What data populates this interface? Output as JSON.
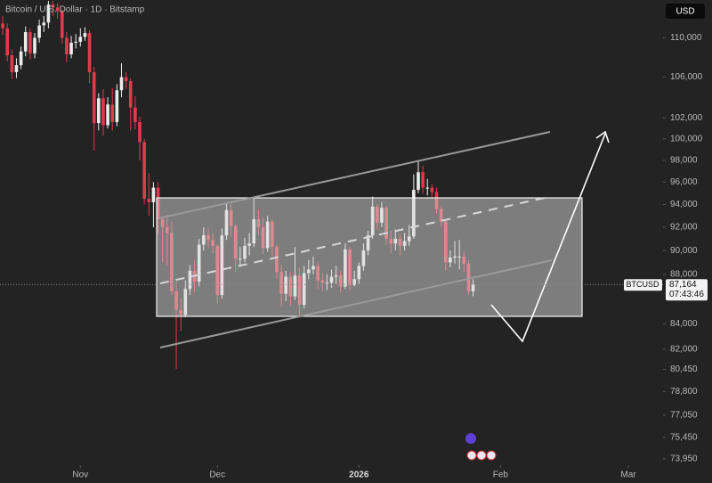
{
  "chart_data": {
    "type": "candlestick",
    "title": "Bitcoin / U.S. Dollar · 1D · Bitstamp",
    "currency": "USD",
    "log_scale": true,
    "up_color": "#ececec",
    "down_color": "#e03a4c",
    "open": [
      111500,
      111000,
      108200,
      106500,
      107200,
      108600,
      110600,
      108400,
      110000,
      111300,
      111600,
      113500,
      113200,
      112800,
      110000,
      108300,
      109500,
      109600,
      110100,
      110500,
      106500,
      101500,
      103900,
      101300,
      103300,
      101600,
      104700,
      106000,
      105600,
      103000,
      101600,
      99700,
      94500,
      94200,
      95500,
      92700,
      92000,
      91500,
      86600,
      85100,
      84700,
      86800,
      88300,
      87400,
      90500,
      91300,
      90900,
      90400,
      86300,
      91300,
      93500,
      92100,
      89300,
      89300,
      90400,
      90600,
      92700,
      92000,
      90200,
      92500,
      90300,
      88200,
      86400,
      87800,
      86200,
      87900,
      85500,
      88100,
      88400,
      88700,
      87500,
      87300,
      87300,
      87800,
      87900,
      87000,
      90100,
      87100,
      87600,
      88700,
      90000,
      91300,
      93800,
      92400,
      93700,
      91000,
      90600,
      91000,
      90400,
      90800,
      91200,
      95300,
      96900,
      95500,
      95500,
      95100,
      93600,
      92500,
      89000,
      89400,
      89500,
      89500,
      88900,
      86600
    ],
    "high": [
      112300,
      111500,
      108800,
      107900,
      109100,
      111200,
      111000,
      110500,
      111900,
      112300,
      113900,
      113900,
      113700,
      113000,
      110600,
      110200,
      110400,
      111000,
      111100,
      110800,
      107000,
      104400,
      104800,
      104000,
      104900,
      105300,
      107400,
      106500,
      105900,
      104100,
      102100,
      100000,
      96800,
      96000,
      96000,
      93000,
      93100,
      92500,
      87400,
      86000,
      87500,
      88800,
      89200,
      91000,
      92000,
      91900,
      91500,
      90500,
      91900,
      94100,
      94000,
      92300,
      90300,
      91100,
      91500,
      94600,
      93500,
      92800,
      93000,
      92700,
      90500,
      88800,
      88300,
      88200,
      90300,
      88500,
      88700,
      89200,
      89500,
      89000,
      88100,
      88000,
      88400,
      88700,
      88300,
      90600,
      90300,
      88300,
      89000,
      90600,
      91700,
      94700,
      94000,
      94200,
      93900,
      91700,
      91800,
      91400,
      91500,
      92200,
      96700,
      97900,
      97500,
      96300,
      95800,
      95500,
      93900,
      92700,
      90000,
      90800,
      90900,
      89900,
      89200,
      87600
    ],
    "low": [
      110300,
      107600,
      105800,
      105900,
      106800,
      108100,
      107800,
      107900,
      109500,
      110600,
      111000,
      112300,
      112000,
      109400,
      107500,
      107900,
      108900,
      109100,
      109700,
      105400,
      98900,
      100800,
      100300,
      101000,
      100800,
      101200,
      104000,
      104800,
      100800,
      100900,
      98000,
      94000,
      93000,
      92000,
      91300,
      89000,
      88700,
      86300,
      80500,
      83400,
      84500,
      86300,
      86500,
      87000,
      90000,
      90200,
      89800,
      85600,
      86000,
      90900,
      91200,
      88200,
      88600,
      89000,
      89600,
      90300,
      91300,
      89700,
      89900,
      89500,
      87600,
      85300,
      85800,
      85400,
      85900,
      84500,
      85200,
      87600,
      88000,
      86800,
      86600,
      86700,
      86900,
      87200,
      86500,
      86800,
      86600,
      87000,
      87200,
      88300,
      89600,
      91000,
      91800,
      92000,
      90500,
      89800,
      90000,
      89600,
      90000,
      90400,
      91000,
      95000,
      95000,
      94800,
      94500,
      93200,
      92000,
      88300,
      88600,
      88900,
      88400,
      88200,
      86300,
      86200
    ],
    "close": [
      111000,
      108200,
      106500,
      107200,
      108600,
      110600,
      108400,
      110000,
      111300,
      111600,
      113500,
      113200,
      112800,
      110000,
      108300,
      109500,
      109600,
      110100,
      110500,
      106500,
      101500,
      103900,
      101300,
      103300,
      101600,
      104700,
      106000,
      105600,
      103000,
      101600,
      99700,
      94500,
      94200,
      95500,
      92700,
      92000,
      91500,
      86600,
      85100,
      84700,
      86800,
      88300,
      87400,
      90500,
      91300,
      90900,
      90400,
      86300,
      91300,
      93500,
      92100,
      89300,
      89300,
      90400,
      90600,
      92700,
      92000,
      90200,
      92500,
      90300,
      88200,
      86400,
      87800,
      86200,
      87900,
      85500,
      88100,
      88400,
      88700,
      87500,
      87300,
      87300,
      87800,
      87900,
      87000,
      90100,
      87100,
      87600,
      88700,
      90000,
      91300,
      93800,
      92400,
      93700,
      91000,
      90600,
      91000,
      90400,
      90800,
      91200,
      95300,
      96900,
      95500,
      95500,
      95100,
      93600,
      92500,
      89000,
      89400,
      89500,
      89500,
      88900,
      86600,
      87200
    ],
    "xlim": [
      -0.6,
      144.6
    ],
    "xticks": [
      {
        "value": 17,
        "label": "Nov"
      },
      {
        "value": 47,
        "label": "Dec"
      },
      {
        "value": 78,
        "label": "2026"
      },
      {
        "value": 109,
        "label": "Feb"
      },
      {
        "value": 137,
        "label": "Mar"
      }
    ],
    "ylim": [
      73500,
      114000
    ],
    "yticks": [
      {
        "value": 110000,
        "label": "110,000"
      },
      {
        "value": 106000,
        "label": "106,000"
      },
      {
        "value": 102000,
        "label": "102,000"
      },
      {
        "value": 100000,
        "label": "100,000"
      },
      {
        "value": 98000,
        "label": "98,000"
      },
      {
        "value": 96000,
        "label": "96,000"
      },
      {
        "value": 94000,
        "label": "94,000"
      },
      {
        "value": 92000,
        "label": "92,000"
      },
      {
        "value": 90000,
        "label": "90,000"
      },
      {
        "value": 88000,
        "label": "88,000"
      },
      {
        "value": 84000,
        "label": "84,000"
      },
      {
        "value": 82000,
        "label": "82,000"
      },
      {
        "value": 80450,
        "label": "80,450"
      },
      {
        "value": 78800,
        "label": "78,800"
      },
      {
        "value": 77050,
        "label": "77,050"
      },
      {
        "value": 75450,
        "label": "75,450"
      },
      {
        "value": 73950,
        "label": "73,950"
      }
    ],
    "symbol": "BTCUSD",
    "last_price": {
      "value": 87164,
      "label": "87,164"
    },
    "countdown": "07:43:46"
  }
}
